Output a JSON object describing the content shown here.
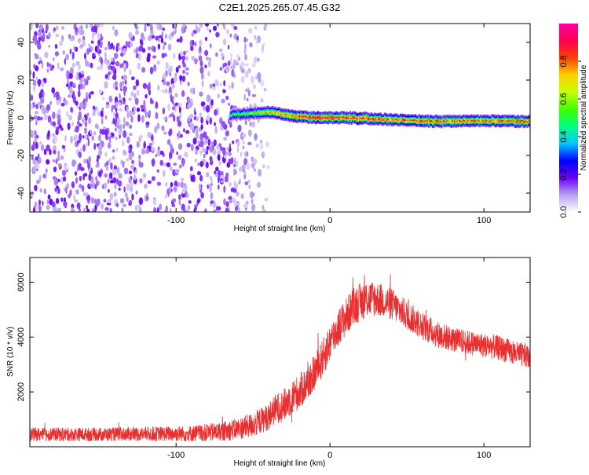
{
  "figure": {
    "title": "C2E1.2025.265.07.45.G32"
  },
  "chart_data": [
    {
      "type": "heatmap",
      "title": "",
      "xlabel": "Height of straight line (km)",
      "ylabel": "Frequency (Hz)",
      "xlim": [
        -195,
        130
      ],
      "ylim": [
        -50,
        50
      ],
      "xticks": [
        -100,
        0,
        100
      ],
      "yticks": [
        -40,
        -20,
        0,
        20,
        40
      ],
      "xtick_labels": [
        "-100",
        "0",
        "100"
      ],
      "ytick_labels": [
        "-40",
        "-20",
        "0",
        "20",
        "40"
      ],
      "grid": false,
      "colorbar": {
        "label": "Normalized spectral amplitude",
        "range": [
          0,
          1
        ],
        "ticks": [
          0.0,
          0.2,
          0.4,
          0.6,
          0.8
        ],
        "tick_labels": [
          "0.0",
          "0.2",
          "0.4",
          "0.6",
          "0.8"
        ],
        "colors": [
          "#ffffff",
          "#b8a0f0",
          "#6a00ff",
          "#0000ff",
          "#00c8ff",
          "#00ff80",
          "#40ff00",
          "#c8ff00",
          "#ffd000",
          "#ff4000",
          "#ff0050",
          "#ff00a0"
        ]
      },
      "regions": {
        "noise_extent_km": [
          -195,
          -40
        ],
        "noise_amplitude": 0.15,
        "carrier": [
          {
            "x": -65,
            "freq": 1.5,
            "amp": 0.45
          },
          {
            "x": -50,
            "freq": 2.5,
            "amp": 0.6
          },
          {
            "x": -40,
            "freq": 3.0,
            "amp": 0.7
          },
          {
            "x": -25,
            "freq": 1.0,
            "amp": 0.85
          },
          {
            "x": -10,
            "freq": 0.0,
            "amp": 0.9
          },
          {
            "x": 10,
            "freq": 0.0,
            "amp": 0.9
          },
          {
            "x": 40,
            "freq": -1.0,
            "amp": 0.8
          },
          {
            "x": 70,
            "freq": -2.0,
            "amp": 0.85
          },
          {
            "x": 100,
            "freq": -1.5,
            "amp": 0.8
          },
          {
            "x": 130,
            "freq": -2.0,
            "amp": 0.85
          }
        ]
      }
    },
    {
      "type": "line",
      "title": "",
      "xlabel": "Height of straight line (km)",
      "ylabel": "SNR (10 * v/v)",
      "xlim": [
        -195,
        130
      ],
      "ylim": [
        0,
        6900
      ],
      "xticks": [
        -100,
        0,
        100
      ],
      "yticks": [
        2000,
        4000,
        6000
      ],
      "xtick_labels": [
        "-100",
        "0",
        "100"
      ],
      "ytick_labels": [
        "2000",
        "4000",
        "6000"
      ],
      "grid": false,
      "series": [
        {
          "name": "",
          "color": "#e83030",
          "x": [
            -195,
            -170,
            -150,
            -130,
            -110,
            -90,
            -70,
            -60,
            -50,
            -40,
            -35,
            -30,
            -25,
            -20,
            -15,
            -10,
            -5,
            0,
            5,
            10,
            15,
            20,
            25,
            30,
            35,
            40,
            45,
            50,
            60,
            70,
            80,
            90,
            100,
            110,
            120,
            130
          ],
          "y": [
            450,
            450,
            450,
            460,
            470,
            480,
            550,
            650,
            800,
            1100,
            1400,
            1500,
            1800,
            2000,
            2300,
            2700,
            3200,
            3800,
            4300,
            4700,
            5100,
            5300,
            5400,
            5400,
            5300,
            5200,
            5000,
            4800,
            4400,
            4100,
            3900,
            3800,
            3700,
            3600,
            3400,
            3300
          ],
          "noise": [
            250,
            250,
            250,
            260,
            270,
            300,
            350,
            400,
            450,
            500,
            550,
            600,
            650,
            650,
            650,
            650,
            700,
            700,
            700,
            700,
            700,
            700,
            700,
            650,
            600,
            600,
            550,
            550,
            500,
            500,
            450,
            450,
            450,
            450,
            450,
            450
          ]
        }
      ]
    }
  ]
}
